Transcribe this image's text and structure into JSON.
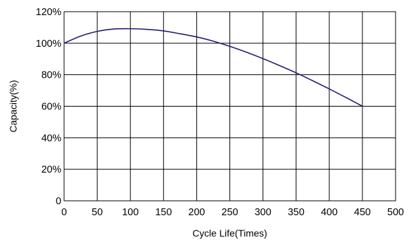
{
  "chart_data": {
    "type": "line",
    "title": "",
    "xlabel": "Cycle Life(Times)",
    "ylabel": "Capacity(%)",
    "xlim": [
      0,
      500
    ],
    "ylim": [
      0,
      120
    ],
    "x_ticks": [
      0,
      50,
      100,
      150,
      200,
      250,
      300,
      350,
      400,
      450,
      500
    ],
    "x_tick_labels": [
      "0",
      "50",
      "100",
      "150",
      "200",
      "250",
      "300",
      "350",
      "400",
      "450",
      "500"
    ],
    "y_ticks": [
      0,
      20,
      40,
      60,
      80,
      100,
      120
    ],
    "y_tick_labels": [
      "0",
      "20%",
      "40%",
      "60%",
      "80%",
      "100%",
      "120%"
    ],
    "grid": true,
    "legend": "none",
    "series": [
      {
        "color": "#1f1f6e",
        "x": [
          0,
          25,
          50,
          75,
          100,
          125,
          150,
          175,
          200,
          225,
          250,
          275,
          300,
          325,
          350,
          375,
          400,
          425,
          450
        ],
        "y": [
          100,
          104.5,
          107.5,
          109,
          109.2,
          108.8,
          107.8,
          106,
          104,
          101.3,
          98,
          94.3,
          90.2,
          85.8,
          81.2,
          76.2,
          71,
          65.6,
          60
        ]
      }
    ]
  }
}
